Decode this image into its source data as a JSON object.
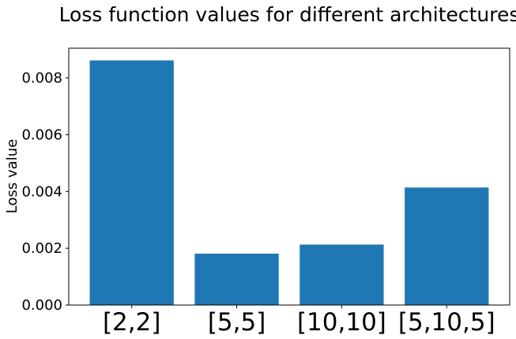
{
  "chart_data": {
    "type": "bar",
    "title": "Loss function values for different architectures",
    "xlabel": "",
    "ylabel": "Loss value",
    "categories": [
      "[2,2]",
      "[5,5]",
      "[10,10]",
      "[5,10,5]"
    ],
    "values": [
      0.00862,
      0.00181,
      0.00213,
      0.00414
    ],
    "ylim": [
      0,
      0.00905
    ],
    "yticks": [
      0.0,
      0.002,
      0.004,
      0.006,
      0.008
    ],
    "ytick_labels": [
      "0.000",
      "0.002",
      "0.004",
      "0.006",
      "0.008"
    ],
    "bar_color": "#1f77b4",
    "grid": false,
    "legend": "none"
  }
}
